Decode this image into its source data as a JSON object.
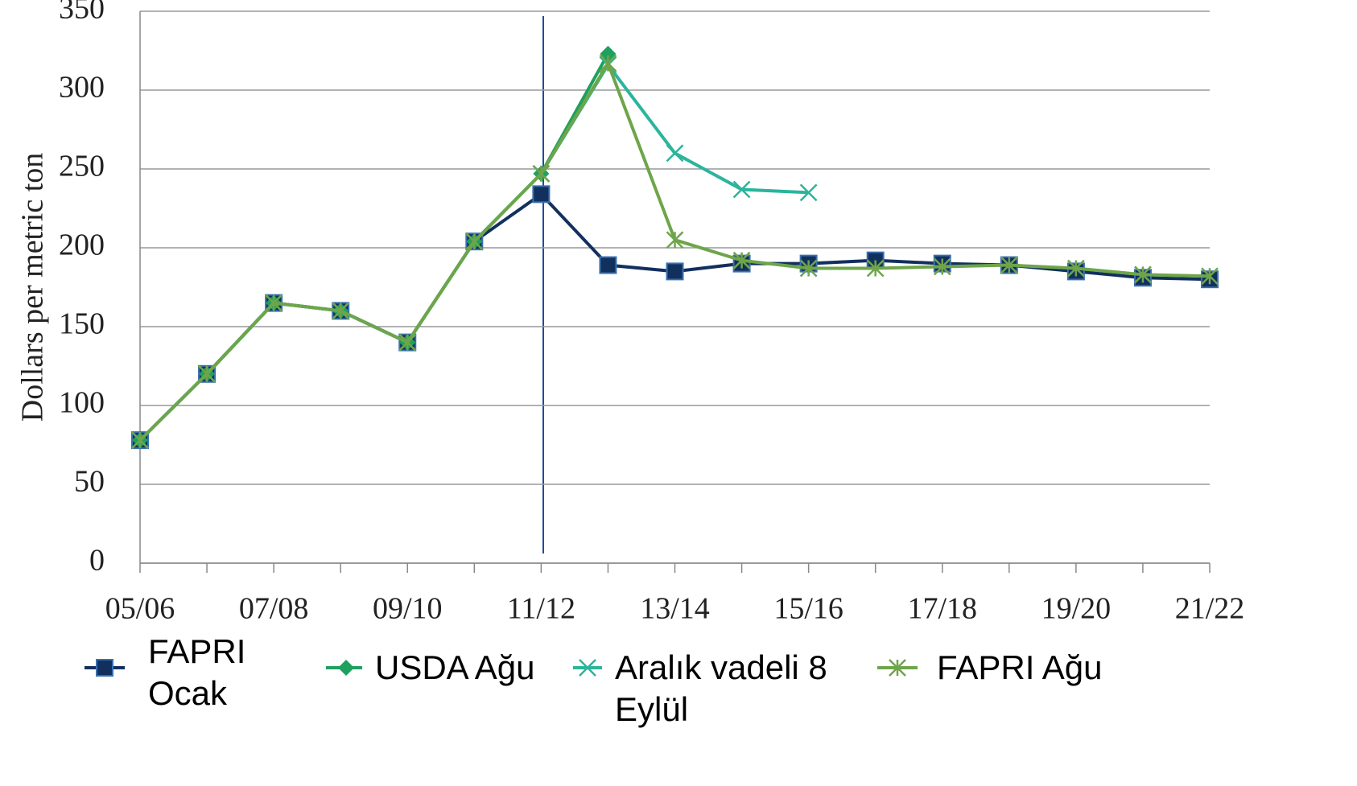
{
  "chart_data": {
    "type": "line",
    "y_label": "Dollars per metric ton",
    "categories": [
      "05/06",
      null,
      "07/08",
      null,
      "09/10",
      null,
      "11/12",
      null,
      "13/14",
      null,
      "15/16",
      null,
      "17/18",
      null,
      "19/20",
      null,
      "21/22"
    ],
    "ylim": [
      0,
      350
    ],
    "yticks": [
      0,
      50,
      100,
      150,
      200,
      250,
      300,
      350
    ],
    "grid": true,
    "series": [
      {
        "name": "FAPRI Ocak",
        "color": "#12305e",
        "marker": "square",
        "values": [
          78,
          120,
          165,
          160,
          140,
          204,
          234,
          189,
          185,
          190,
          190,
          192,
          190,
          189,
          185,
          181,
          180
        ]
      },
      {
        "name": "USDA Ağu",
        "color": "#1fa05e",
        "marker": "diamond",
        "values": [
          78,
          120,
          165,
          160,
          140,
          204,
          247,
          323,
          null,
          null,
          null,
          null,
          null,
          null,
          null,
          null,
          null
        ]
      },
      {
        "name": "Aralık vadeli 8 Eylül",
        "color": "#2ab59c",
        "marker": "x",
        "values": [
          78,
          120,
          165,
          160,
          140,
          204,
          247,
          316,
          260,
          237,
          235,
          null,
          null,
          null,
          null,
          null,
          null
        ]
      },
      {
        "name": "FAPRI Ağu",
        "color": "#6ea54a",
        "marker": "star",
        "values": [
          78,
          120,
          165,
          160,
          140,
          204,
          247,
          317,
          205,
          192,
          187,
          187,
          188,
          189,
          187,
          183,
          182
        ]
      }
    ]
  }
}
